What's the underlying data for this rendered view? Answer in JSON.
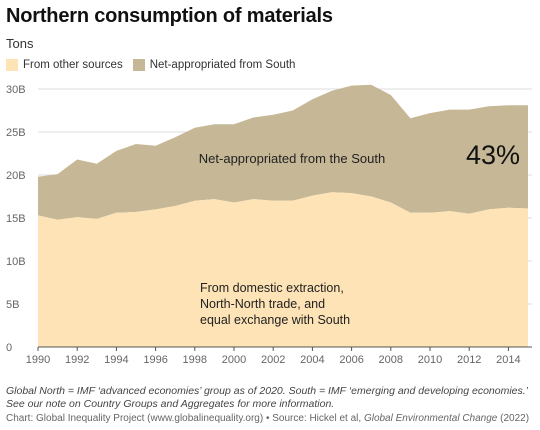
{
  "header": {
    "title": "Northern consumption of materials",
    "subtitle": "Tons"
  },
  "colors": {
    "other_sources": "#fde3b5",
    "net_appropriated": "#c6b896",
    "grid": "#dddddd",
    "axis_text": "#666666"
  },
  "chart_data": {
    "type": "area",
    "stacked": true,
    "x": [
      1990,
      1991,
      1992,
      1993,
      1994,
      1995,
      1996,
      1997,
      1998,
      1999,
      2000,
      2001,
      2002,
      2003,
      2004,
      2005,
      2006,
      2007,
      2008,
      2009,
      2010,
      2011,
      2012,
      2013,
      2014,
      2015
    ],
    "series": [
      {
        "name": "From other sources",
        "values": [
          15.3,
          14.8,
          15.1,
          14.9,
          15.6,
          15.7,
          16.0,
          16.4,
          17.0,
          17.2,
          16.8,
          17.2,
          17.0,
          17.0,
          17.6,
          18.0,
          17.9,
          17.5,
          16.8,
          15.6,
          15.6,
          15.8,
          15.5,
          16.0,
          16.2,
          16.1
        ]
      },
      {
        "name": "Net-appropriated from South",
        "values": [
          4.5,
          5.3,
          6.7,
          6.4,
          7.2,
          7.9,
          7.4,
          8.0,
          8.5,
          8.7,
          9.1,
          9.5,
          10.0,
          10.5,
          11.2,
          11.8,
          12.5,
          13.0,
          12.5,
          11.0,
          11.6,
          11.8,
          12.1,
          12.0,
          11.9,
          12.0
        ]
      }
    ],
    "ylim": [
      0,
      30
    ],
    "y_ticks": [
      0,
      5,
      10,
      15,
      20,
      25,
      30
    ],
    "y_tick_labels": [
      "0",
      "5B",
      "10B",
      "15B",
      "20B",
      "25B",
      "30B"
    ],
    "x_ticks": [
      1990,
      1992,
      1994,
      1996,
      1998,
      2000,
      2002,
      2004,
      2006,
      2008,
      2010,
      2012,
      2014
    ],
    "grid": true,
    "legend": "top-left",
    "annotations": {
      "upper_label": "Net-appropriated from the South",
      "percent": "43%",
      "lower_label_lines": [
        "From domestic extraction,",
        "North-North trade, and",
        "equal exchange with South"
      ]
    }
  },
  "footer": {
    "note": "Global North = IMF ‘advanced economies’ group as of 2020. South = IMF ‘emerging and developing economies.’ See our note on Country Groups and Aggregates for more information.",
    "credit_prefix": "Chart: Global Inequality Project (www.globalinequality.org) • Source: Hickel et al, ",
    "credit_journal": "Global Environmental Change",
    "credit_suffix": " (2022)"
  }
}
